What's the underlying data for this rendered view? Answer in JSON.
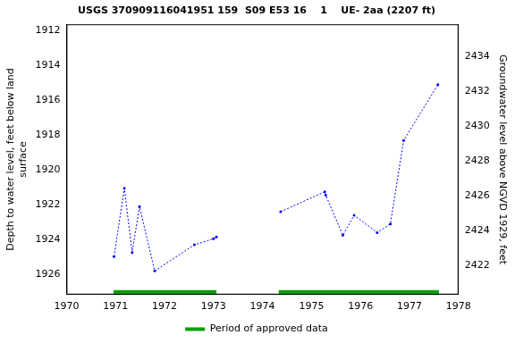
{
  "chart_data": {
    "type": "line",
    "title": "USGS 370909116041951 159  S09 E53 16    1    UE- 2aa (2207 ft)",
    "ylabel": [
      "Depth to water level, feet below land",
      "surface"
    ],
    "y2label": "Groundwater level above NGVD 1929, feet",
    "x": [
      1970.97,
      1971.18,
      1971.34,
      1971.49,
      1971.8,
      1972.61,
      1973.0,
      1973.06,
      1973.7,
      1974.37,
      1975.27,
      1975.29,
      1975.64,
      1975.87,
      1976.34,
      1976.61,
      1976.88,
      1977.58
    ],
    "series": [
      {
        "color": "#0000ff",
        "marker": "circle",
        "line_style": "dotted",
        "values": [
          1924.98,
          1921.05,
          1924.74,
          1922.1,
          1925.8,
          1924.3,
          1923.95,
          1923.85,
          null,
          1922.4,
          1921.25,
          1921.45,
          1923.75,
          1922.6,
          1923.6,
          1923.1,
          1918.3,
          1915.1
        ]
      }
    ],
    "approved": {
      "name": "Period of approved data",
      "color": "#00a000",
      "periods": [
        [
          1970.96,
          1973.06
        ],
        [
          1974.33,
          1977.6
        ]
      ]
    },
    "xlim": [
      1970,
      1978
    ],
    "xticks": [
      1970,
      1971,
      1972,
      1973,
      1974,
      1975,
      1976,
      1977,
      1978
    ],
    "ylim": [
      1927.16,
      1911.63
    ],
    "yticks": [
      1912,
      1914,
      1916,
      1918,
      1920,
      1922,
      1924,
      1926
    ],
    "y2lim": [
      2420.31,
      2435.84
    ],
    "y2ticks": [
      2422,
      2424,
      2426,
      2428,
      2430,
      2432,
      2434
    ],
    "legend": "bottom",
    "grid": false
  }
}
